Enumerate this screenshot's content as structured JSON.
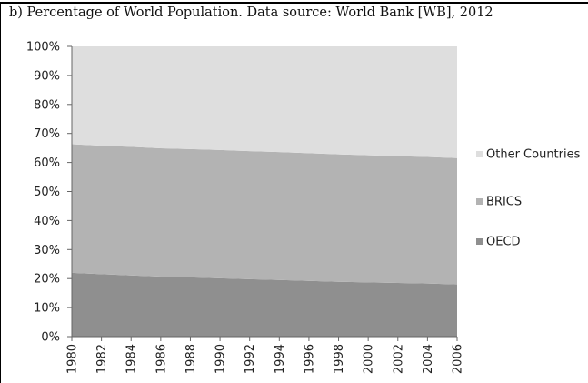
{
  "caption": "b) Percentage of World Population. Data source: World Bank [WB], 2012",
  "chart_data": {
    "type": "area",
    "stacked": true,
    "percent": true,
    "title": "b) Percentage of World Population. Data source: World Bank [WB], 2012",
    "x": [
      1980,
      1982,
      1984,
      1986,
      1988,
      1990,
      1992,
      1994,
      1996,
      1998,
      2000,
      2002,
      2004,
      2006
    ],
    "x_tick_labels": [
      "1980",
      "1982",
      "1984",
      "1986",
      "1988",
      "1990",
      "1992",
      "1994",
      "1996",
      "1998",
      "2000",
      "2002",
      "2004",
      "2006"
    ],
    "y_tick_labels": [
      "0%",
      "10%",
      "20%",
      "30%",
      "40%",
      "50%",
      "60%",
      "70%",
      "80%",
      "90%",
      "100%"
    ],
    "ylim": [
      0,
      100
    ],
    "legend_position": "right",
    "series": [
      {
        "name": "OECD",
        "color": "#8f8f8f",
        "values": [
          22.0,
          21.5,
          21.1,
          20.7,
          20.4,
          20.1,
          19.8,
          19.5,
          19.2,
          18.9,
          18.7,
          18.5,
          18.3,
          18.0
        ]
      },
      {
        "name": "BRICS",
        "color": "#b3b3b3",
        "values": [
          44.3,
          44.3,
          44.3,
          44.2,
          44.2,
          44.2,
          44.1,
          44.1,
          44.0,
          43.9,
          43.8,
          43.7,
          43.6,
          43.5
        ]
      },
      {
        "name": "Other Countries",
        "color": "#dedede",
        "values": [
          33.7,
          34.2,
          34.6,
          35.1,
          35.4,
          35.7,
          36.1,
          36.4,
          36.8,
          37.2,
          37.5,
          37.8,
          38.1,
          38.5
        ]
      }
    ],
    "legend_order": [
      "Other Countries",
      "BRICS",
      "OECD"
    ]
  }
}
